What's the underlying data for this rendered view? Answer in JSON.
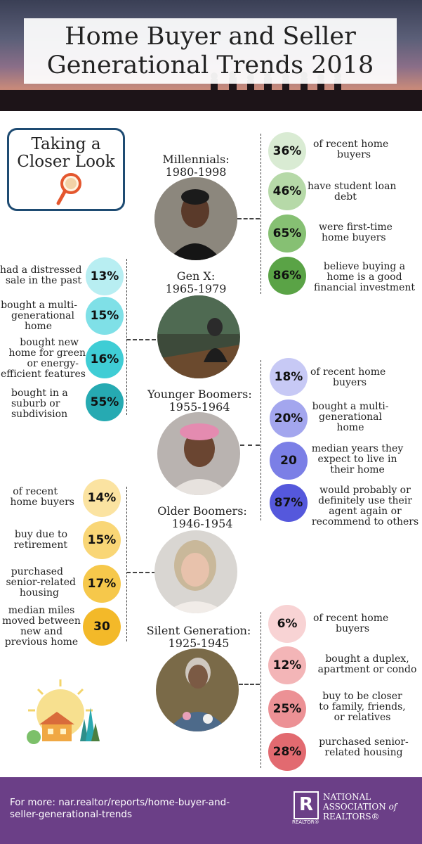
{
  "title": {
    "line1": "Home Buyer and Seller",
    "line2": "Generational Trends 2018"
  },
  "closer_look": {
    "line1": "Taking a",
    "line2": "Closer Look"
  },
  "millennials": {
    "name": "Millennials:",
    "years": "1980-1998",
    "stats": [
      {
        "pct": "36%",
        "l1": "of recent home",
        "l2": "buyers",
        "l3": "",
        "color": "#d9ebd3"
      },
      {
        "pct": "46%",
        "l1": "have student loan",
        "l2": "debt",
        "l3": "",
        "color": "#b6d9a8"
      },
      {
        "pct": "65%",
        "l1": "were first-time",
        "l2": "home buyers",
        "l3": "",
        "color": "#86c073"
      },
      {
        "pct": "86%",
        "l1": "believe buying a",
        "l2": "home is a good",
        "l3": "financial investment",
        "color": "#5aa346"
      }
    ]
  },
  "genx": {
    "name": "Gen X:",
    "years": "1965-1979",
    "stats": [
      {
        "pct": "13%",
        "l1": "had a distressed",
        "l2": "sale in the past",
        "l3": "",
        "l4": "",
        "color": "#b8eef2"
      },
      {
        "pct": "15%",
        "l1": "bought a multi-",
        "l2": "generational",
        "l3": "home",
        "l4": "",
        "color": "#7fe0e7"
      },
      {
        "pct": "16%",
        "l1": "bought new",
        "l2": "home for green",
        "l3": "or energy-",
        "l4": "efficient features",
        "color": "#3fcdd5"
      },
      {
        "pct": "55%",
        "l1": "bought in a",
        "l2": "suburb or",
        "l3": "subdivision",
        "l4": "",
        "color": "#26aab2"
      }
    ]
  },
  "younger_boomers": {
    "name": "Younger Boomers:",
    "years": "1955-1964",
    "stats": [
      {
        "pct": "18%",
        "l1": "of recent home",
        "l2": "buyers",
        "l3": "",
        "color": "#c7c9f5"
      },
      {
        "pct": "20%",
        "l1": "bought a multi-",
        "l2": "generational",
        "l3": "home",
        "color": "#a3a6ee"
      },
      {
        "pct": "20",
        "l1": "median years they",
        "l2": "expect to live in",
        "l3": "their home",
        "color": "#7b7fe6"
      },
      {
        "pct": "87%",
        "l1": "would probably or",
        "l2": "definitely use their",
        "l3": "agent again or",
        "l4": "recommend to others",
        "color": "#5558dc"
      }
    ]
  },
  "older_boomers": {
    "name": "Older Boomers:",
    "years": "1946-1954",
    "stats": [
      {
        "pct": "14%",
        "l1": "of recent",
        "l2": "home buyers",
        "l3": "",
        "color": "#fbe3a1"
      },
      {
        "pct": "15%",
        "l1": "buy due to",
        "l2": "retirement",
        "l3": "",
        "color": "#f9d676"
      },
      {
        "pct": "17%",
        "l1": "purchased",
        "l2": "senior-related",
        "l3": "housing",
        "color": "#f6c84b"
      },
      {
        "pct": "30",
        "l1": "median miles",
        "l2": "moved between",
        "l3": "new and",
        "l4": "previous home",
        "color": "#f3b929"
      }
    ]
  },
  "silent": {
    "name": "Silent Generation:",
    "years": "1925-1945",
    "stats": [
      {
        "pct": "6%",
        "l1": "of recent home",
        "l2": "buyers",
        "l3": "",
        "color": "#f8d3d4"
      },
      {
        "pct": "12%",
        "l1": "bought a duplex,",
        "l2": "apartment or condo",
        "l3": "",
        "color": "#f3b5b7"
      },
      {
        "pct": "25%",
        "l1": "buy to be closer",
        "l2": "to family, friends,",
        "l3": "or relatives",
        "color": "#ec9195"
      },
      {
        "pct": "28%",
        "l1": "purchased senior-",
        "l2": "related housing",
        "l3": "",
        "color": "#e26a70"
      }
    ]
  },
  "footer": {
    "line1": "For more: nar.realtor/reports/home-buyer-and-",
    "line2": "seller-generational-trends",
    "logo_letter": "R",
    "logo_sub": "REALTOR®",
    "assoc1": "NATIONAL",
    "assoc2": "ASSOCIATION",
    "assoc2b": "of",
    "assoc3": "REALTORS®"
  },
  "icons": [
    "magnifying-glass-icon",
    "house-sun-illustration"
  ]
}
